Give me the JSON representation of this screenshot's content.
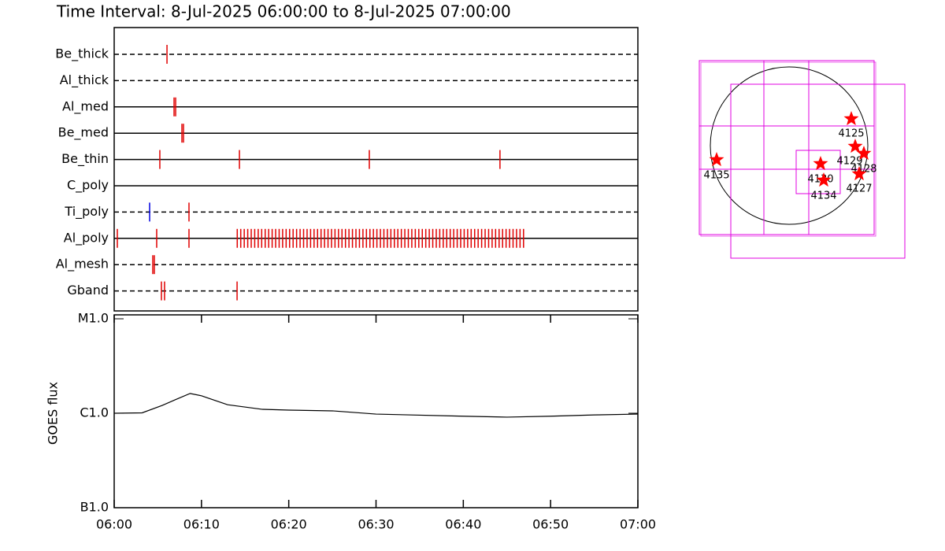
{
  "chart_data": [
    {
      "type": "timeline",
      "title": "Time Interval:  8-Jul-2025 06:00:00 to  8-Jul-2025 07:00:00",
      "xlim": [
        0,
        60
      ],
      "color": "#e00000",
      "rows": [
        {
          "label": "Be_thick",
          "line": "dashed",
          "values": [
            6.05
          ]
        },
        {
          "label": "Al_thick",
          "line": "dashed",
          "values": []
        },
        {
          "label": "Al_med",
          "line": "solid",
          "values": [
            6.86,
            7.04
          ]
        },
        {
          "label": "Be_med",
          "line": "solid",
          "values": [
            7.76,
            7.94
          ]
        },
        {
          "label": "Be_thin",
          "line": "solid",
          "values": [
            5.23,
            14.35,
            29.23,
            44.2
          ]
        },
        {
          "label": "C_poly",
          "line": "solid",
          "values": []
        },
        {
          "label": "Ti_poly",
          "line": "dashed",
          "values": [
            4.06,
            8.57
          ],
          "colors": [
            "#0000e0",
            "#e00000"
          ]
        },
        {
          "label": "Al_poly",
          "line": "solid",
          "values": [
            0.36,
            4.87,
            8.57,
            14.1,
            14.5,
            14.9,
            15.3,
            15.7,
            16.1,
            16.5,
            16.9,
            17.3,
            17.7,
            18.1,
            18.5,
            18.9,
            19.3,
            19.7,
            20.1,
            20.5,
            20.9,
            21.3,
            21.7,
            22.1,
            22.5,
            22.9,
            23.3,
            23.7,
            24.1,
            24.5,
            24.9,
            25.3,
            25.7,
            26.1,
            26.5,
            26.9,
            27.3,
            27.7,
            28.1,
            28.5,
            28.9,
            29.3,
            29.7,
            30.1,
            30.5,
            30.9,
            31.3,
            31.7,
            32.1,
            32.5,
            32.9,
            33.3,
            33.7,
            34.1,
            34.5,
            34.9,
            35.3,
            35.7,
            36.1,
            36.5,
            36.9,
            37.3,
            37.7,
            38.1,
            38.5,
            38.9,
            39.3,
            39.7,
            40.1,
            40.5,
            40.9,
            41.3,
            41.7,
            42.1,
            42.5,
            42.9,
            43.3,
            43.7,
            44.1,
            44.5,
            44.9,
            45.3,
            45.7,
            46.1,
            46.5,
            46.9
          ]
        },
        {
          "label": "Al_mesh",
          "line": "dashed",
          "values": [
            4.42,
            4.6
          ]
        },
        {
          "label": "Gband",
          "line": "dashed",
          "values": [
            5.41,
            5.77,
            14.08
          ]
        }
      ]
    },
    {
      "type": "line",
      "ylabel": "GOES flux",
      "x": [
        0,
        3.2,
        5.5,
        7,
        8.7,
        10,
        13,
        17,
        20,
        25,
        30,
        40,
        45,
        50,
        55,
        60
      ],
      "values": [
        1e-06,
        1.01e-06,
        1.21e-06,
        1.39e-06,
        1.62e-06,
        1.53e-06,
        1.23e-06,
        1.1e-06,
        1.08e-06,
        1.06e-06,
        9.8e-07,
        9.3e-07,
        9.1e-07,
        9.3e-07,
        9.6e-07,
        9.8e-07
      ],
      "color": "#000000",
      "xlim": [
        0,
        60
      ],
      "xticks": [
        {
          "value": 0,
          "label": "06:00"
        },
        {
          "value": 10,
          "label": "06:10"
        },
        {
          "value": 20,
          "label": "06:20"
        },
        {
          "value": 30,
          "label": "06:30"
        },
        {
          "value": 40,
          "label": "06:40"
        },
        {
          "value": 50,
          "label": "06:50"
        },
        {
          "value": 60,
          "label": "07:00"
        }
      ],
      "ylim": [
        1e-07,
        1e-05
      ],
      "yticks": [
        {
          "value": 1e-07,
          "label": "B1.0"
        },
        {
          "value": 1e-06,
          "label": "C1.0"
        },
        {
          "value": 1e-05,
          "label": "M1.0"
        }
      ],
      "log_scale": true
    }
  ],
  "map": {
    "labels": [
      "4125",
      "4129",
      "4128",
      "4127",
      "4130",
      "4134",
      "4135"
    ]
  }
}
